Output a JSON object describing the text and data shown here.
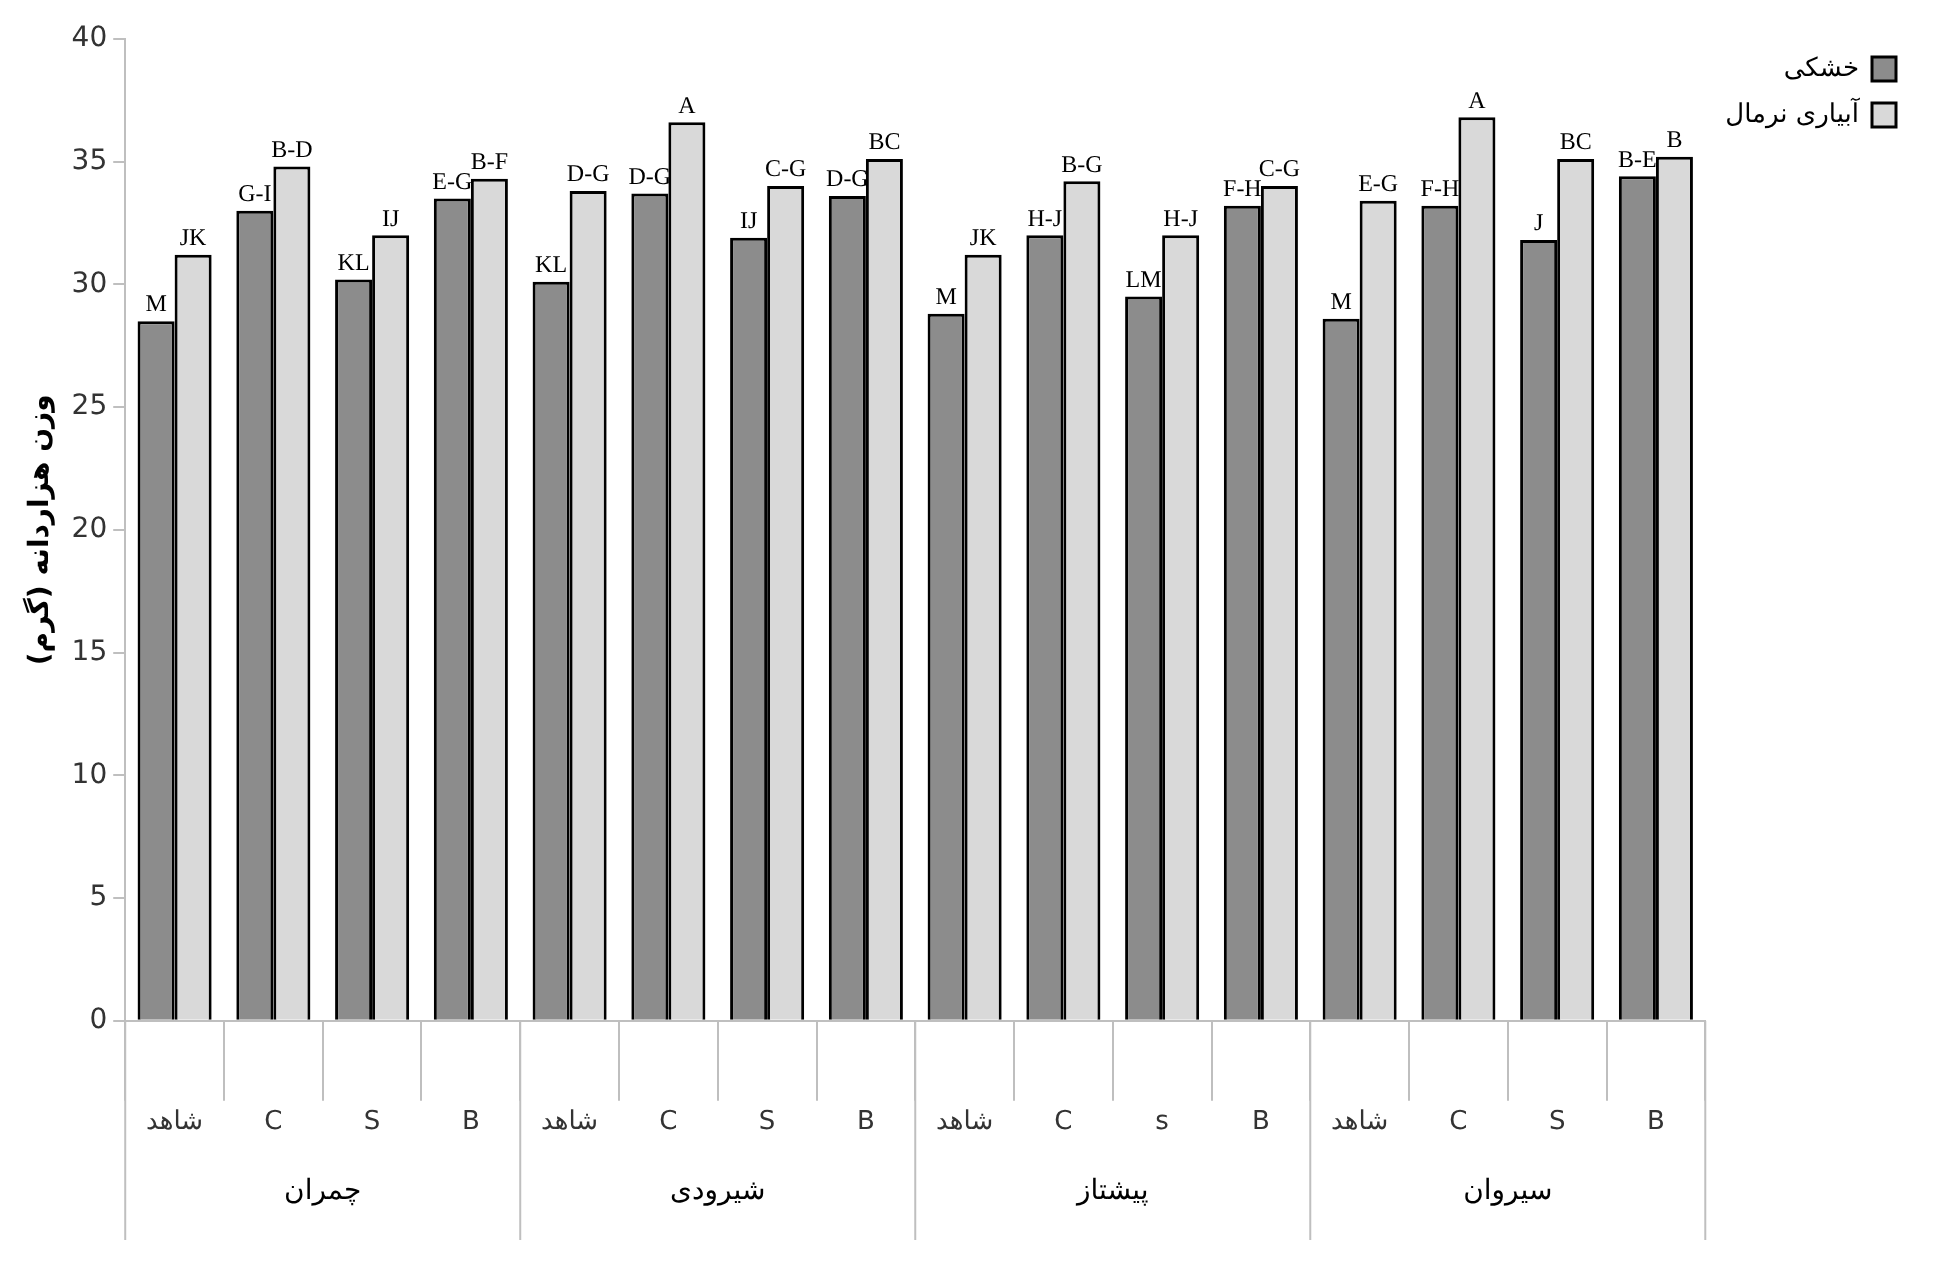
{
  "chart_data": {
    "type": "bar",
    "ylabel": "وزن هزاردانه (گرم)",
    "categories": [
      "شاهد",
      "C",
      "S",
      "B",
      "شاهد",
      "C",
      "S",
      "B",
      "شاهد",
      "C",
      "s",
      "B",
      "شاهد",
      "C",
      "S",
      "B"
    ],
    "series": [
      {
        "name": "خشکی",
        "color": "#8c8c8c",
        "values": [
          28.5,
          33.0,
          30.2,
          33.5,
          30.1,
          33.7,
          31.9,
          33.6,
          28.8,
          32.0,
          29.5,
          33.2,
          28.6,
          33.2,
          31.8,
          34.4
        ],
        "value_labels": [
          "M",
          "G-I",
          "KL",
          "E-G",
          "KL",
          "D-G",
          "IJ",
          "D-G",
          "M",
          "H-J",
          "LM",
          "F-H",
          "M",
          "F-H",
          "J",
          "B-E"
        ]
      },
      {
        "name": "آبیاری نرمال",
        "color": "#d9d9d9",
        "values": [
          31.2,
          34.8,
          32.0,
          34.3,
          33.8,
          36.6,
          34.0,
          35.1,
          31.2,
          34.2,
          32.0,
          34.0,
          33.4,
          36.8,
          35.1,
          35.2
        ],
        "value_labels": [
          "JK",
          "B-D",
          "IJ",
          "B-F",
          "D-G",
          "A",
          "C-G",
          "BC",
          "JK",
          "B-G",
          "H-J",
          "C-G",
          "E-G",
          "A",
          "BC",
          "B"
        ]
      }
    ],
    "annotations": [
      "چمران",
      "شیرودی",
      "پیشتاز",
      "سیروان"
    ],
    "ylim": [
      0,
      40
    ],
    "yticks": [
      0,
      5,
      10,
      15,
      20,
      25,
      30,
      35,
      40
    ],
    "grid": false,
    "legend": "top right"
  }
}
